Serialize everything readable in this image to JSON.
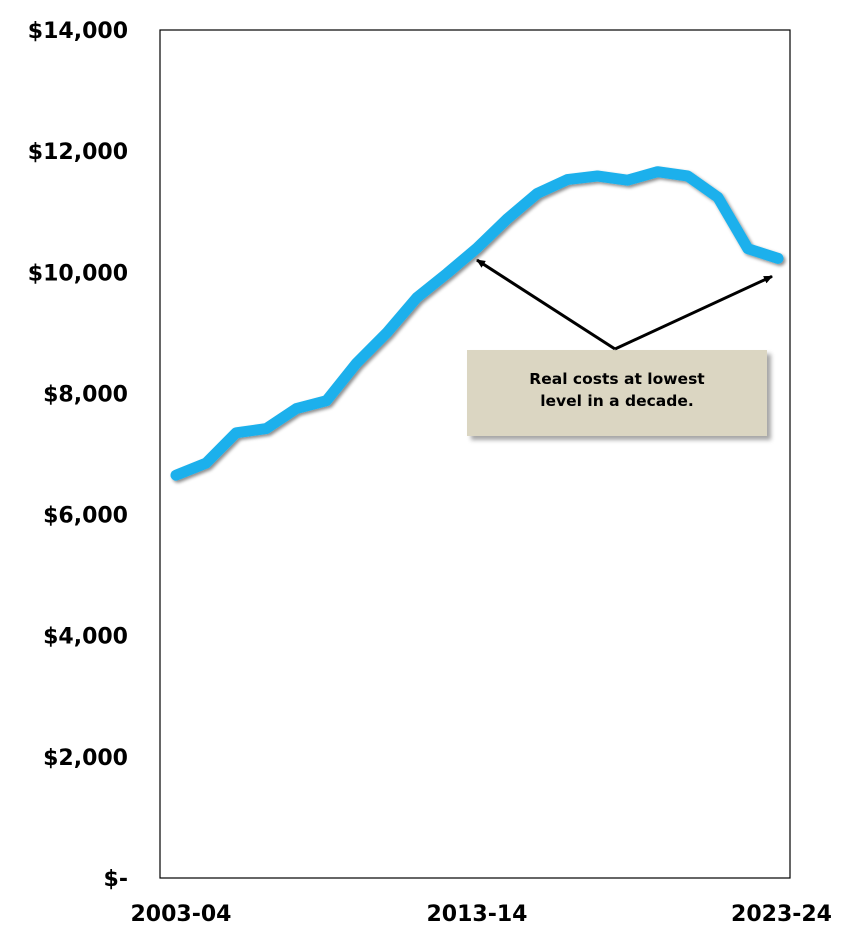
{
  "chart_data": {
    "type": "line",
    "title": "",
    "xlabel": "",
    "ylabel": "",
    "ylim": [
      0,
      14000
    ],
    "y_ticks": [
      0,
      2000,
      4000,
      6000,
      8000,
      10000,
      12000,
      14000
    ],
    "y_tick_labels": [
      "$-",
      "$2,000",
      "$4,000",
      "$6,000",
      "$8,000",
      "$10,000",
      "$12,000",
      "$14,000"
    ],
    "x_tick_labels": [
      "2003-04",
      "2013-14",
      "2023-24"
    ],
    "grid": false,
    "legend": "none",
    "x": [
      "2003-04",
      "2004-05",
      "2005-06",
      "2006-07",
      "2007-08",
      "2008-09",
      "2009-10",
      "2010-11",
      "2011-12",
      "2012-13",
      "2013-14",
      "2014-15",
      "2015-16",
      "2016-17",
      "2017-18",
      "2018-19",
      "2019-20",
      "2020-21",
      "2021-22",
      "2022-23",
      "2023-24"
    ],
    "series": [
      {
        "color": "#1ab0ec",
        "values": [
          6650,
          6850,
          7350,
          7420,
          7750,
          7880,
          8500,
          9000,
          9580,
          9980,
          10400,
          10880,
          11300,
          11530,
          11590,
          11520,
          11660,
          11590,
          11240,
          10390,
          10230
        ]
      }
    ],
    "annotations": [
      {
        "text_lines": [
          "Real costs at lowest",
          "level in a decade."
        ],
        "box_color": "#dbd6c2",
        "arrows_to": [
          "2013-14",
          "2023-24"
        ]
      }
    ]
  }
}
